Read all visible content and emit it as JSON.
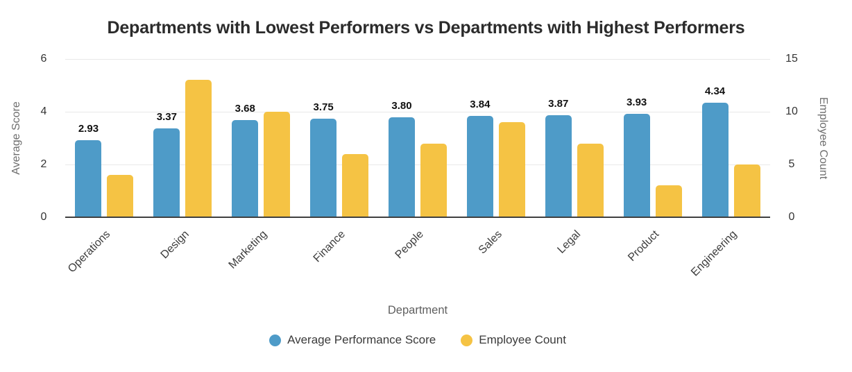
{
  "chart_data": {
    "type": "bar",
    "title": "Departments with Lowest Performers vs Departments with Highest Performers",
    "categories": [
      "Operations",
      "Design",
      "Marketing",
      "Finance",
      "People",
      "Sales",
      "Legal",
      "Product",
      "Engineering"
    ],
    "series": [
      {
        "name": "Average Performance Score",
        "axis": "left",
        "color": "#4E9BC8",
        "values": [
          2.93,
          3.37,
          3.68,
          3.75,
          3.8,
          3.84,
          3.87,
          3.93,
          4.34
        ],
        "value_labels": [
          "2.93",
          "3.37",
          "3.68",
          "3.75",
          "3.80",
          "3.84",
          "3.87",
          "3.93",
          "4.34"
        ]
      },
      {
        "name": "Employee Count",
        "axis": "right",
        "color": "#F5C344",
        "values": [
          4,
          13,
          10,
          6,
          7,
          9,
          7,
          3,
          5
        ]
      }
    ],
    "left_axis": {
      "label": "Average Score",
      "ticks": [
        "0",
        "2",
        "4",
        "6"
      ],
      "tick_values": [
        0,
        2,
        4,
        6
      ],
      "min": 0,
      "max": 6
    },
    "right_axis": {
      "label": "Employee Count",
      "ticks": [
        "0",
        "5",
        "10",
        "15"
      ],
      "tick_values": [
        0,
        5,
        10,
        15
      ],
      "min": 0,
      "max": 15
    },
    "xlabel": "Department",
    "grid": true,
    "legend_position": "bottom",
    "grid_color": "#e8e8e8",
    "axis_line_color": "#3f3f3f",
    "title_color": "#2b2b2b"
  }
}
